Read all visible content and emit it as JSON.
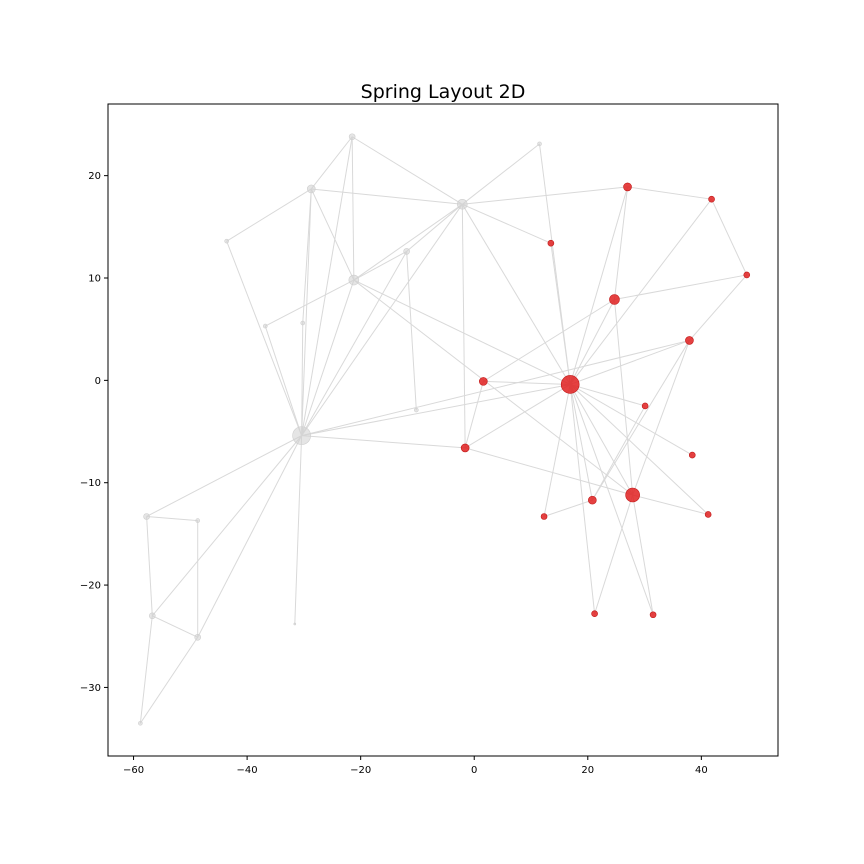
{
  "chart_data": {
    "type": "scatter",
    "title": "Spring Layout 2D",
    "xlabel": "",
    "ylabel": "",
    "xlim": [
      -64.5,
      53.5
    ],
    "ylim": [
      -36.7,
      27.0
    ],
    "xticks": [
      -60,
      -40,
      -20,
      0,
      20,
      40
    ],
    "yticks": [
      -30,
      -20,
      -10,
      0,
      10,
      20
    ],
    "grid": false,
    "highlight_color": "#e02020",
    "base_color": "#d0d0d0",
    "edge_color": "#d9d9d9",
    "nodes": [
      {
        "id": "A",
        "x": -21.5,
        "y": 23.8,
        "size": 3,
        "highlighted": false
      },
      {
        "id": "B",
        "x": -28.7,
        "y": 18.7,
        "size": 4,
        "highlighted": false
      },
      {
        "id": "C",
        "x": -2.1,
        "y": 17.2,
        "size": 5,
        "highlighted": false
      },
      {
        "id": "D",
        "x": 11.5,
        "y": 23.1,
        "size": 2,
        "highlighted": false
      },
      {
        "id": "E",
        "x": -43.6,
        "y": 13.6,
        "size": 2,
        "highlighted": false
      },
      {
        "id": "F",
        "x": -11.9,
        "y": 12.6,
        "size": 3,
        "highlighted": false
      },
      {
        "id": "G",
        "x": -21.2,
        "y": 9.8,
        "size": 5,
        "highlighted": false
      },
      {
        "id": "H",
        "x": -36.8,
        "y": 5.3,
        "size": 2,
        "highlighted": false
      },
      {
        "id": "I",
        "x": -30.2,
        "y": 5.6,
        "size": 2,
        "highlighted": false
      },
      {
        "id": "J",
        "x": -10.2,
        "y": -2.9,
        "size": 2,
        "highlighted": false
      },
      {
        "id": "K",
        "x": -30.4,
        "y": -5.4,
        "size": 9,
        "highlighted": false
      },
      {
        "id": "L",
        "x": -57.7,
        "y": -13.3,
        "size": 3,
        "highlighted": false
      },
      {
        "id": "M",
        "x": -48.7,
        "y": -13.7,
        "size": 2,
        "highlighted": false
      },
      {
        "id": "N",
        "x": -56.7,
        "y": -23.0,
        "size": 3,
        "highlighted": false
      },
      {
        "id": "O",
        "x": -48.7,
        "y": -25.1,
        "size": 3,
        "highlighted": false
      },
      {
        "id": "P",
        "x": -31.6,
        "y": -23.8,
        "size": 1,
        "highlighted": false
      },
      {
        "id": "Q",
        "x": -58.8,
        "y": -33.5,
        "size": 2,
        "highlighted": false
      },
      {
        "id": "R",
        "x": 27.0,
        "y": 18.9,
        "size": 4,
        "highlighted": true
      },
      {
        "id": "S",
        "x": 41.8,
        "y": 17.7,
        "size": 3,
        "highlighted": true
      },
      {
        "id": "T",
        "x": 13.5,
        "y": 13.4,
        "size": 3,
        "highlighted": true
      },
      {
        "id": "U",
        "x": 48.0,
        "y": 10.3,
        "size": 3,
        "highlighted": true
      },
      {
        "id": "V",
        "x": 24.7,
        "y": 7.9,
        "size": 5,
        "highlighted": true
      },
      {
        "id": "W",
        "x": 37.9,
        "y": 3.9,
        "size": 4,
        "highlighted": true
      },
      {
        "id": "X",
        "x": 1.6,
        "y": -0.1,
        "size": 4,
        "highlighted": true
      },
      {
        "id": "Y",
        "x": 16.9,
        "y": -0.4,
        "size": 9,
        "highlighted": true
      },
      {
        "id": "Z",
        "x": 30.1,
        "y": -2.5,
        "size": 3,
        "highlighted": true
      },
      {
        "id": "AA",
        "x": -1.6,
        "y": -6.6,
        "size": 4,
        "highlighted": true
      },
      {
        "id": "AB",
        "x": 38.4,
        "y": -7.3,
        "size": 3,
        "highlighted": true
      },
      {
        "id": "AC",
        "x": 20.8,
        "y": -11.7,
        "size": 4,
        "highlighted": true
      },
      {
        "id": "AD",
        "x": 27.9,
        "y": -11.2,
        "size": 7,
        "highlighted": true
      },
      {
        "id": "AE",
        "x": 12.3,
        "y": -13.3,
        "size": 3,
        "highlighted": true
      },
      {
        "id": "AF",
        "x": 41.2,
        "y": -13.1,
        "size": 3,
        "highlighted": true
      },
      {
        "id": "AG",
        "x": 21.2,
        "y": -22.8,
        "size": 3,
        "highlighted": true
      },
      {
        "id": "AH",
        "x": 31.5,
        "y": -22.9,
        "size": 3,
        "highlighted": true
      }
    ],
    "edges": [
      [
        "A",
        "B"
      ],
      [
        "A",
        "C"
      ],
      [
        "A",
        "G"
      ],
      [
        "A",
        "K"
      ],
      [
        "B",
        "C"
      ],
      [
        "B",
        "E"
      ],
      [
        "B",
        "G"
      ],
      [
        "B",
        "K"
      ],
      [
        "B",
        "I"
      ],
      [
        "C",
        "D"
      ],
      [
        "C",
        "F"
      ],
      [
        "C",
        "G"
      ],
      [
        "C",
        "K"
      ],
      [
        "C",
        "T"
      ],
      [
        "C",
        "Y"
      ],
      [
        "C",
        "AA"
      ],
      [
        "C",
        "R"
      ],
      [
        "D",
        "Y"
      ],
      [
        "E",
        "K"
      ],
      [
        "F",
        "G"
      ],
      [
        "F",
        "J"
      ],
      [
        "F",
        "K"
      ],
      [
        "G",
        "H"
      ],
      [
        "G",
        "K"
      ],
      [
        "G",
        "Y"
      ],
      [
        "G",
        "AD"
      ],
      [
        "H",
        "K"
      ],
      [
        "I",
        "K"
      ],
      [
        "K",
        "L"
      ],
      [
        "K",
        "N"
      ],
      [
        "K",
        "O"
      ],
      [
        "K",
        "P"
      ],
      [
        "K",
        "Y"
      ],
      [
        "K",
        "AA"
      ],
      [
        "K",
        "W"
      ],
      [
        "L",
        "M"
      ],
      [
        "L",
        "N"
      ],
      [
        "M",
        "O"
      ],
      [
        "N",
        "O"
      ],
      [
        "N",
        "Q"
      ],
      [
        "O",
        "Q"
      ],
      [
        "R",
        "S"
      ],
      [
        "R",
        "V"
      ],
      [
        "R",
        "Y"
      ],
      [
        "S",
        "U"
      ],
      [
        "S",
        "Y"
      ],
      [
        "T",
        "Y"
      ],
      [
        "U",
        "V"
      ],
      [
        "U",
        "W"
      ],
      [
        "V",
        "X"
      ],
      [
        "V",
        "Y"
      ],
      [
        "V",
        "AD"
      ],
      [
        "W",
        "Y"
      ],
      [
        "W",
        "AD"
      ],
      [
        "W",
        "AC"
      ],
      [
        "X",
        "Y"
      ],
      [
        "X",
        "AA"
      ],
      [
        "Y",
        "Z"
      ],
      [
        "Y",
        "AA"
      ],
      [
        "Y",
        "AB"
      ],
      [
        "Y",
        "AC"
      ],
      [
        "Y",
        "AD"
      ],
      [
        "Y",
        "AE"
      ],
      [
        "Y",
        "AF"
      ],
      [
        "Y",
        "AG"
      ],
      [
        "Y",
        "AH"
      ],
      [
        "Z",
        "AC"
      ],
      [
        "AA",
        "AD"
      ],
      [
        "AD",
        "AF"
      ],
      [
        "AD",
        "AG"
      ],
      [
        "AD",
        "AH"
      ],
      [
        "AC",
        "AE"
      ]
    ]
  }
}
